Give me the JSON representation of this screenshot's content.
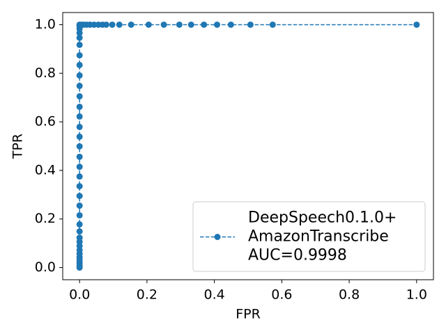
{
  "chart_data": {
    "type": "line",
    "xlabel": "FPR",
    "ylabel": "TPR",
    "x": [
      0,
      0,
      0,
      0,
      0,
      0,
      0,
      0,
      0,
      0,
      0,
      0,
      0,
      0,
      0,
      0,
      0,
      0,
      0,
      0,
      0,
      0,
      0,
      0,
      0,
      0,
      0,
      0,
      0,
      0,
      0,
      0,
      0,
      0,
      0,
      0.006,
      0.012,
      0.021,
      0.031,
      0.043,
      0.056,
      0.068,
      0.079,
      0.097,
      0.118,
      0.153,
      0.205,
      0.25,
      0.296,
      0.331,
      0.369,
      0.408,
      0.449,
      0.507,
      0.573,
      1.0
    ],
    "series": [
      {
        "name": "DeepSpeech0.1.0+\nAmazonTranscribe\nAUC=0.9998",
        "color": "#1f77b4",
        "values": [
          0,
          0.009,
          0.02,
          0.032,
          0.043,
          0.057,
          0.072,
          0.089,
          0.106,
          0.123,
          0.149,
          0.178,
          0.215,
          0.255,
          0.295,
          0.335,
          0.375,
          0.415,
          0.456,
          0.499,
          0.539,
          0.579,
          0.622,
          0.662,
          0.705,
          0.748,
          0.791,
          0.834,
          0.874,
          0.917,
          0.946,
          0.966,
          0.983,
          0.994,
          1.0,
          1.0,
          1.0,
          1.0,
          1.0,
          1.0,
          1.0,
          1.0,
          1.0,
          1.0,
          1.0,
          1.0,
          1.0,
          1.0,
          1.0,
          1.0,
          1.0,
          1.0,
          1.0,
          1.0,
          1.0,
          1.0
        ]
      }
    ],
    "xlim": [
      -0.05,
      1.05
    ],
    "ylim": [
      -0.05,
      1.05
    ],
    "xticks": [
      {
        "value": 0,
        "label": "0.0"
      },
      {
        "value": 0.2,
        "label": "0.2"
      },
      {
        "value": 0.4,
        "label": "0.4"
      },
      {
        "value": 0.6,
        "label": "0.6"
      },
      {
        "value": 0.8,
        "label": "0.8"
      },
      {
        "value": 1,
        "label": "1.0"
      }
    ],
    "yticks": [
      {
        "value": 0,
        "label": "0.0"
      },
      {
        "value": 0.2,
        "label": "0.2"
      },
      {
        "value": 0.4,
        "label": "0.4"
      },
      {
        "value": 0.6,
        "label": "0.6"
      },
      {
        "value": 0.8,
        "label": "0.8"
      },
      {
        "value": 1,
        "label": "1.0"
      }
    ],
    "grid": false,
    "legend": "lower right"
  }
}
